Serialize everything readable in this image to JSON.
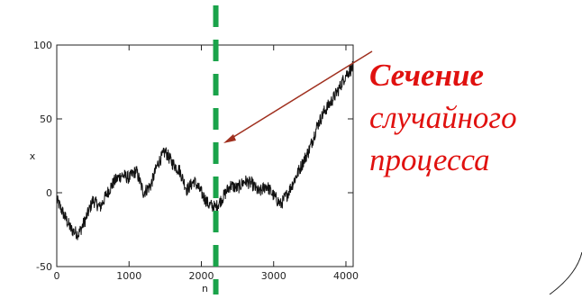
{
  "annotation": {
    "line1": "Сечение",
    "line2": "случайного",
    "line3": "процесса"
  },
  "colors": {
    "trace": "#111111",
    "section_line": "#1aa34a",
    "arrow": "#a0301f",
    "annotation_text": "#e0110f"
  },
  "chart_data": {
    "type": "line",
    "title": "",
    "xlabel": "n",
    "ylabel": "x",
    "xlim": [
      0,
      4100
    ],
    "ylim": [
      -50,
      100
    ],
    "xticks": [
      0,
      1000,
      2000,
      3000,
      4000
    ],
    "yticks": [
      -50,
      0,
      50,
      100
    ],
    "section_at_x": 2200,
    "series": [
      {
        "x": [
          0,
          100,
          200,
          300,
          400,
          500,
          600,
          700,
          800,
          900,
          1000,
          1100,
          1200,
          1300,
          1400,
          1500,
          1600,
          1700,
          1800,
          1900,
          2000,
          2100,
          2200,
          2300,
          2400,
          2500,
          2600,
          2700,
          2800,
          2900,
          3000,
          3100,
          3200,
          3300,
          3400,
          3500,
          3600,
          3700,
          3800,
          3900,
          4000,
          4100
        ],
        "y": [
          -5,
          -15,
          -25,
          -28,
          -18,
          -5,
          -10,
          0,
          8,
          12,
          10,
          15,
          0,
          5,
          20,
          28,
          20,
          15,
          2,
          8,
          0,
          -8,
          -10,
          -3,
          5,
          3,
          8,
          6,
          0,
          5,
          -2,
          -8,
          0,
          10,
          20,
          30,
          45,
          55,
          62,
          70,
          80,
          85
        ]
      }
    ]
  }
}
